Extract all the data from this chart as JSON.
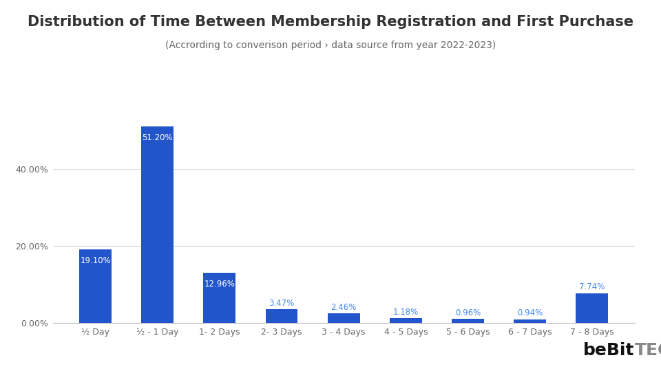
{
  "title": "Distribution of Time Between Membership Registration and First Purchase",
  "subtitle": "(Accrording to converison period › data source from year 2022-2023)",
  "categories": [
    "½ Day",
    "½ - 1 Day",
    "1- 2 Days",
    "2- 3 Days",
    "3 - 4 Days",
    "4 - 5 Days",
    "5 - 6 Days",
    "6 - 7 Days",
    "7 - 8 Days"
  ],
  "values": [
    19.1,
    51.2,
    12.96,
    3.47,
    2.46,
    1.18,
    0.96,
    0.94,
    7.74
  ],
  "labels": [
    "19.10%",
    "51.20%",
    "12.96%",
    "3.47%",
    "2.46%",
    "1.18%",
    "0.96%",
    "0.94%",
    "7.74%"
  ],
  "bar_color": "#2255cc",
  "label_color_inside": "#ffffff",
  "label_color_outside": "#4488ee",
  "background_color": "#ffffff",
  "title_color": "#333333",
  "subtitle_color": "#666666",
  "grid_color": "#dddddd",
  "yticks": [
    0.0,
    20.0,
    40.0
  ],
  "ylim": [
    0,
    58
  ],
  "title_fontsize": 15,
  "subtitle_fontsize": 10,
  "label_fontsize": 8.5,
  "tick_fontsize": 9,
  "logo_bebit_color": "#111111",
  "logo_tech_color": "#888888",
  "logo_o_color": "#e8b830"
}
